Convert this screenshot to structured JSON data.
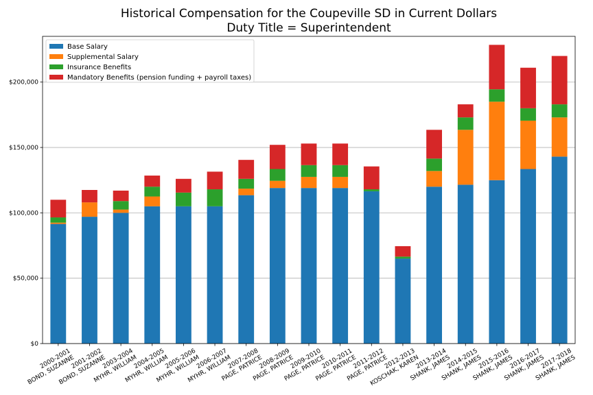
{
  "chart_data": {
    "type": "bar",
    "stacked": true,
    "title": "Historical Compensation for the Coupeville SD in Current Dollars",
    "subtitle": "Duty Title = Superintendent",
    "xlabel": "",
    "ylabel": "",
    "ylim": [
      0,
      235000
    ],
    "yticks": [
      0,
      50000,
      100000,
      150000,
      200000
    ],
    "ytick_labels": [
      "$0",
      "$50,000",
      "$100,000",
      "$150,000",
      "$200,000"
    ],
    "grid": "horizontal",
    "legend_position": "top-left",
    "categories": [
      [
        "2000-2001",
        "BOND, SUZANNE"
      ],
      [
        "2001-2002",
        "BOND, SUZANNE"
      ],
      [
        "2003-2004",
        "MYHR, WILLIAM"
      ],
      [
        "2004-2005",
        "MYHR, WILLIAM"
      ],
      [
        "2005-2006",
        "MYHR, WILLIAM"
      ],
      [
        "2006-2007",
        "MYHR, WILLIAM"
      ],
      [
        "2007-2008",
        "PAGE, PATRICE"
      ],
      [
        "2008-2009",
        "PAGE, PATRICE"
      ],
      [
        "2009-2010",
        "PAGE, PATRICE"
      ],
      [
        "2010-2011",
        "PAGE, PATRICE"
      ],
      [
        "2011-2012",
        "PAGE, PATRICE"
      ],
      [
        "2012-2013",
        "KOSCHAK, KAREN"
      ],
      [
        "2013-2014",
        "SHANK, JAMES"
      ],
      [
        "2014-2015",
        "SHANK, JAMES"
      ],
      [
        "2015-2016",
        "SHANK, JAMES"
      ],
      [
        "2016-2017",
        "SHANK, JAMES"
      ],
      [
        "2017-2018",
        "SHANK, JAMES"
      ]
    ],
    "series": [
      {
        "name": "Base Salary",
        "color": "#1f77b4",
        "values": [
          91500,
          97000,
          100000,
          105000,
          105000,
          105000,
          113500,
          119000,
          119000,
          119000,
          116500,
          65000,
          120000,
          121500,
          125000,
          133500,
          143000
        ]
      },
      {
        "name": "Supplemental Salary",
        "color": "#ff7f0e",
        "values": [
          1000,
          11000,
          2500,
          7500,
          0,
          0,
          5000,
          5500,
          8500,
          8500,
          0,
          0,
          12000,
          42000,
          60000,
          37000,
          30000
        ]
      },
      {
        "name": "Insurance Benefits",
        "color": "#2ca02c",
        "values": [
          4000,
          0,
          6500,
          7500,
          10500,
          13000,
          7500,
          9000,
          9000,
          9000,
          1500,
          1500,
          9500,
          9500,
          9500,
          9500,
          10000
        ]
      },
      {
        "name": "Mandatory Benefits (pension funding + payroll taxes)",
        "color": "#d62728",
        "values": [
          13500,
          9500,
          8000,
          8500,
          10500,
          13500,
          14500,
          18500,
          16500,
          16500,
          17500,
          8000,
          22000,
          10000,
          34000,
          31000,
          37000
        ]
      }
    ]
  }
}
